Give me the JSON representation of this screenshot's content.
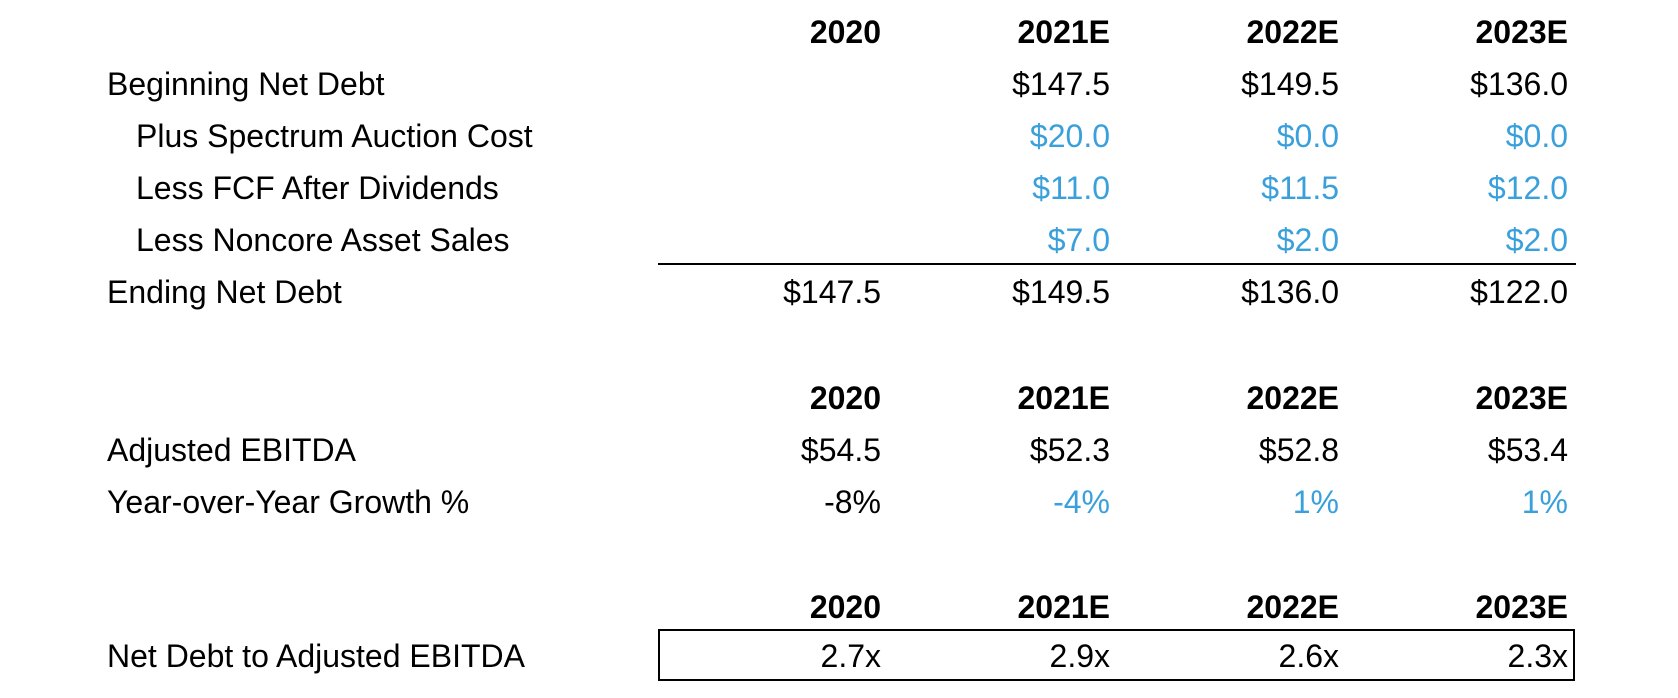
{
  "colors": {
    "input": "#3aa0dc",
    "text": "#000000"
  },
  "table1": {
    "headers": [
      "2020",
      "2021E",
      "2022E",
      "2023E"
    ],
    "rows": [
      {
        "label": "Beginning Net Debt",
        "values": [
          "",
          "$147.5",
          "$149.5",
          "$136.0"
        ]
      },
      {
        "label": "Plus Spectrum Auction Cost",
        "values": [
          "",
          "$20.0",
          "$0.0",
          "$0.0"
        ]
      },
      {
        "label": "Less FCF After Dividends",
        "values": [
          "",
          "$11.0",
          "$11.5",
          "$12.0"
        ]
      },
      {
        "label": "Less Noncore Asset Sales",
        "values": [
          "",
          "$7.0",
          "$2.0",
          "$2.0"
        ]
      },
      {
        "label": "Ending Net Debt",
        "values": [
          "$147.5",
          "$149.5",
          "$136.0",
          "$122.0"
        ]
      }
    ]
  },
  "table2": {
    "headers": [
      "2020",
      "2021E",
      "2022E",
      "2023E"
    ],
    "rows": [
      {
        "label": "Adjusted EBITDA",
        "values": [
          "$54.5",
          "$52.3",
          "$52.8",
          "$53.4"
        ]
      },
      {
        "label": "Year-over-Year Growth %",
        "values": [
          "-8%",
          "-4%",
          "1%",
          "1%"
        ]
      }
    ]
  },
  "table3": {
    "headers": [
      "2020",
      "2021E",
      "2022E",
      "2023E"
    ],
    "rows": [
      {
        "label": "Net Debt to Adjusted EBITDA",
        "values": [
          "2.7x",
          "2.9x",
          "2.6x",
          "2.3x"
        ]
      }
    ]
  }
}
